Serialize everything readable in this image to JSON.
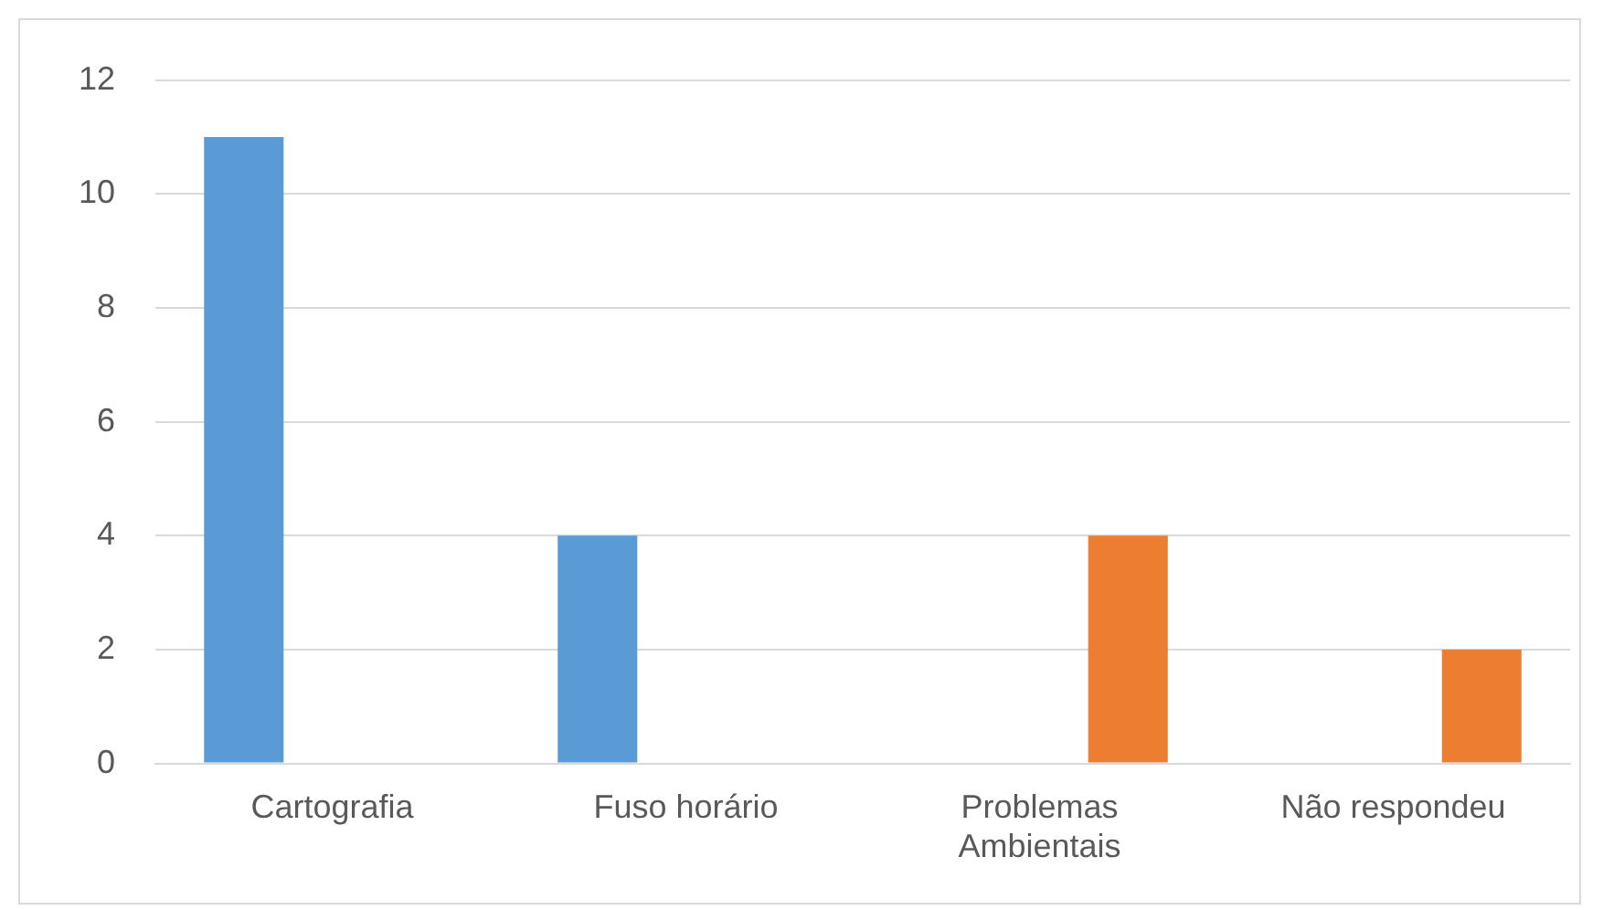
{
  "chart_data": {
    "type": "bar",
    "categories": [
      "Cartografia",
      "Fuso horário",
      "Problemas Ambientais",
      "Não respondeu"
    ],
    "series": [
      {
        "color": "#5b9bd5",
        "values": [
          11,
          4,
          null,
          null
        ]
      },
      {
        "color": "#ed7d31",
        "values": [
          null,
          null,
          4,
          2
        ]
      }
    ],
    "ylim": [
      0,
      12
    ],
    "yticks": [
      0,
      2,
      4,
      6,
      8,
      10,
      12
    ],
    "grid": "y",
    "legend": false
  }
}
